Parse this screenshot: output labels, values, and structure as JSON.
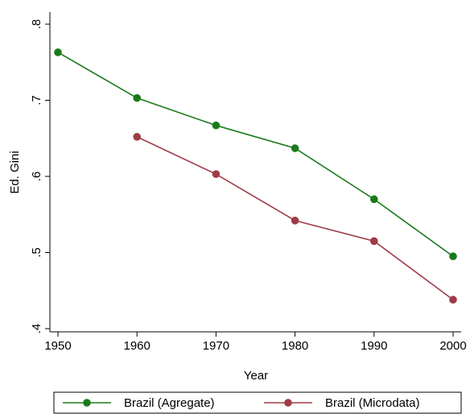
{
  "chart_data": {
    "type": "line",
    "xlabel": "Year",
    "ylabel": "Ed. Gini",
    "x_ticks": [
      1950,
      1960,
      1970,
      1980,
      1990,
      2000
    ],
    "y_ticks": [
      0.4,
      0.5,
      0.6,
      0.7,
      0.8
    ],
    "y_tick_labels": [
      ".4",
      ".5",
      ".6",
      ".7",
      ".8"
    ],
    "xlim": [
      1950,
      2000
    ],
    "ylim": [
      0.4,
      0.8
    ],
    "grid": false,
    "legend_position": "bottom",
    "series": [
      {
        "name": "Brazil (Agregate)",
        "color": "#1a7a1a",
        "marker": "circle",
        "x": [
          1950,
          1960,
          1970,
          1980,
          1990,
          2000
        ],
        "y": [
          0.763,
          0.703,
          0.667,
          0.637,
          0.57,
          0.495
        ]
      },
      {
        "name": "Brazil (Microdata)",
        "color": "#9e3c46",
        "marker": "circle",
        "x": [
          1960,
          1970,
          1980,
          1990,
          2000
        ],
        "y": [
          0.652,
          0.603,
          0.542,
          0.515,
          0.438
        ]
      }
    ]
  }
}
